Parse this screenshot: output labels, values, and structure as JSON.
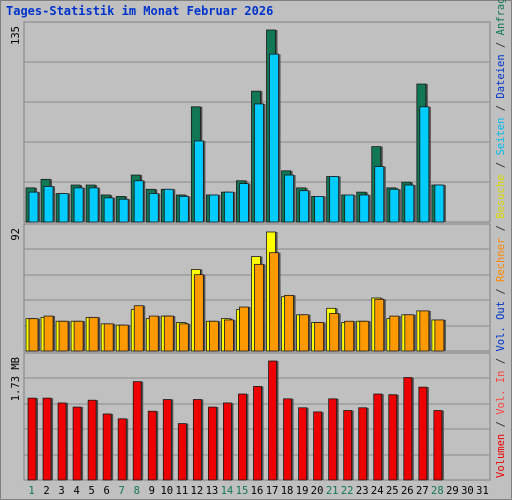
{
  "title": "Tages-Statistik im Monat Februar 2026",
  "legend": [
    {
      "label": "Volumen",
      "color": "#ee0000"
    },
    {
      "label": "Vol. In",
      "color": "#ff4444"
    },
    {
      "label": "Vol. Out",
      "color": "#0033cc"
    },
    {
      "label": "Rechner",
      "color": "#ff8800"
    },
    {
      "label": "Besuche",
      "color": "#dddd00"
    },
    {
      "label": "Seiten",
      "color": "#00bbee"
    },
    {
      "label": "Dateien",
      "color": "#0033cc"
    },
    {
      "label": "Anfragen",
      "color": "#117755"
    }
  ],
  "legend_separator": " / ",
  "chart_data": [
    {
      "type": "bar",
      "title": "",
      "ymax_label": "135",
      "ylim": [
        0,
        135
      ],
      "categories": [
        "1",
        "2",
        "3",
        "4",
        "5",
        "6",
        "7",
        "8",
        "9",
        "10",
        "11",
        "12",
        "13",
        "14",
        "15",
        "16",
        "17",
        "18",
        "19",
        "20",
        "21",
        "22",
        "23",
        "24",
        "25",
        "26",
        "27",
        "28",
        "29",
        "30",
        "31"
      ],
      "series": [
        {
          "name": "Anfragen",
          "color": "#117755",
          "values": [
            24,
            30,
            20,
            26,
            26,
            19,
            18,
            33,
            23,
            23,
            19,
            81,
            19,
            21,
            29,
            92,
            135,
            36,
            24,
            18,
            32,
            19,
            21,
            53,
            24,
            28,
            97,
            26,
            null,
            null,
            null
          ]
        },
        {
          "name": "Seiten",
          "color": "#00ccff",
          "values": [
            21,
            25,
            20,
            24,
            24,
            17,
            16,
            29,
            20,
            23,
            18,
            57,
            19,
            21,
            27,
            83,
            118,
            33,
            22,
            18,
            32,
            19,
            19,
            39,
            23,
            26,
            81,
            26,
            null,
            null,
            null
          ]
        }
      ],
      "grid": true
    },
    {
      "type": "bar",
      "title": "",
      "ymax_label": "92",
      "ylim": [
        0,
        92
      ],
      "categories": [
        "1",
        "2",
        "3",
        "4",
        "5",
        "6",
        "7",
        "8",
        "9",
        "10",
        "11",
        "12",
        "13",
        "14",
        "15",
        "16",
        "17",
        "18",
        "19",
        "20",
        "21",
        "22",
        "23",
        "24",
        "25",
        "26",
        "27",
        "28",
        "29",
        "30",
        "31"
      ],
      "series": [
        {
          "name": "Besuche",
          "color": "#ffff00",
          "values": [
            25,
            26,
            23,
            23,
            26,
            21,
            20,
            32,
            25,
            27,
            22,
            63,
            23,
            25,
            32,
            73,
            92,
            42,
            28,
            22,
            33,
            22,
            23,
            41,
            25,
            28,
            31,
            24,
            null,
            null,
            null
          ]
        },
        {
          "name": "Rechner",
          "color": "#ff9900",
          "values": [
            25,
            27,
            23,
            23,
            26,
            21,
            20,
            35,
            27,
            27,
            21,
            59,
            23,
            24,
            34,
            67,
            76,
            43,
            28,
            22,
            29,
            23,
            23,
            40,
            27,
            28,
            31,
            24,
            null,
            null,
            null
          ]
        }
      ],
      "grid": true
    },
    {
      "type": "bar",
      "title": "",
      "ymax_label": "1.73 MB",
      "ylim": [
        0,
        1.73
      ],
      "categories": [
        "1",
        "2",
        "3",
        "4",
        "5",
        "6",
        "7",
        "8",
        "9",
        "10",
        "11",
        "12",
        "13",
        "14",
        "15",
        "16",
        "17",
        "18",
        "19",
        "20",
        "21",
        "22",
        "23",
        "24",
        "25",
        "26",
        "27",
        "28",
        "29",
        "30",
        "31"
      ],
      "series": [
        {
          "name": "Volumen",
          "color": "#ee0000",
          "values": [
            1.19,
            1.19,
            1.12,
            1.06,
            1.16,
            0.96,
            0.89,
            1.43,
            1.0,
            1.17,
            0.82,
            1.17,
            1.06,
            1.12,
            1.25,
            1.36,
            1.73,
            1.18,
            1.05,
            0.99,
            1.18,
            1.01,
            1.05,
            1.25,
            1.24,
            1.49,
            1.35,
            1.01,
            null,
            null,
            null
          ]
        }
      ],
      "grid": true
    }
  ],
  "x_label_colors": {
    "weekday": "#000000",
    "weekend": "#117755"
  },
  "weekend_days": [
    "1",
    "7",
    "8",
    "14",
    "15",
    "21",
    "22",
    "28"
  ]
}
